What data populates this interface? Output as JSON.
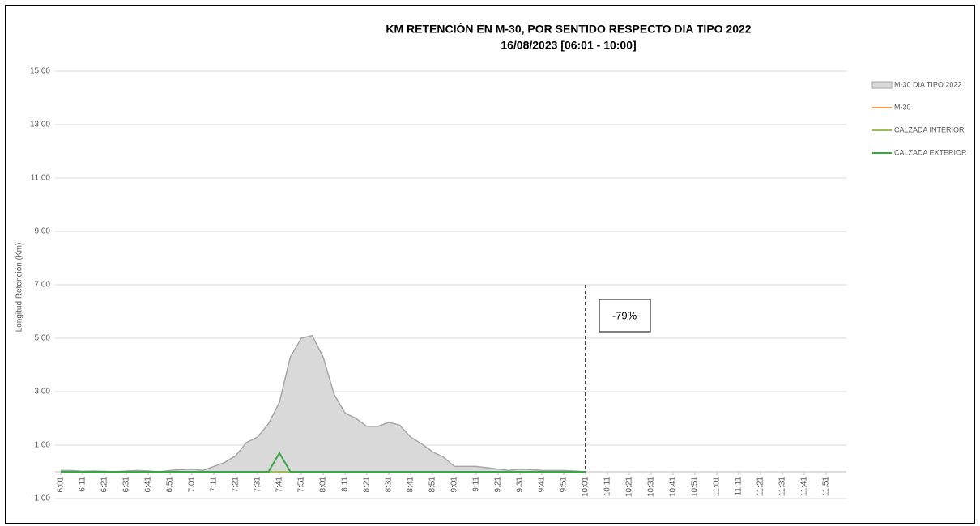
{
  "chart_data": {
    "type": "area",
    "title": "KM RETENCIÓN EN M-30, POR SENTIDO RESPECTO DIA TIPO 2022",
    "subtitle": "16/08/2023    [06:01 - 10:00]",
    "y_label": "Longitud Retención (Km)",
    "categories": [
      "6:01",
      null,
      "6:11",
      null,
      "6:21",
      null,
      "6:31",
      null,
      "6:41",
      null,
      "6:51",
      null,
      "7:01",
      null,
      "7:11",
      null,
      "7:21",
      null,
      "7:31",
      null,
      "7:41",
      null,
      "7:51",
      null,
      "8:01",
      null,
      "8:11",
      null,
      "8:21",
      null,
      "8:31",
      null,
      "8:41",
      null,
      "8:51",
      null,
      "9:01",
      null,
      "9:11",
      null,
      "9:21",
      null,
      "9:31",
      null,
      "9:41",
      null,
      "9:51",
      null,
      "10:01",
      null,
      "10:11",
      null,
      "10:21",
      null,
      "10:31",
      null,
      "10:41",
      null,
      "10:51",
      null,
      "11:01",
      null,
      "11:11",
      null,
      "11:21",
      null,
      "11:31",
      null,
      "11:41",
      null,
      "11:51",
      null
    ],
    "series": [
      {
        "name": "M-30 DIA TIPO 2022",
        "type": "area",
        "color": "#d9d9d9",
        "stroke": "#a6a6a6",
        "values": [
          0.05,
          0.05,
          0.02,
          0.03,
          0.02,
          0,
          0.03,
          0.05,
          0.03,
          0,
          0.05,
          0.08,
          0.1,
          0.05,
          0.2,
          0.35,
          0.6,
          1.1,
          1.3,
          1.8,
          2.6,
          4.3,
          5.0,
          5.1,
          4.3,
          2.9,
          2.2,
          2.0,
          1.7,
          1.7,
          1.85,
          1.75,
          1.3,
          1.05,
          0.75,
          0.55,
          0.2,
          0.2,
          0.2,
          0.15,
          0.1,
          0.05,
          0.1,
          0.08,
          0.05,
          0.05,
          0.05,
          0.03,
          0,
          null,
          null,
          null,
          null,
          null,
          null,
          null,
          null,
          null,
          null,
          null,
          null,
          null,
          null,
          null,
          null,
          null,
          null,
          null,
          null,
          null,
          null,
          null
        ]
      },
      {
        "name": "M-30",
        "type": "line",
        "color": "#f79646",
        "values": [
          0,
          0,
          0,
          0,
          0,
          0,
          0,
          0,
          0,
          0,
          0,
          0,
          0,
          0,
          0,
          0,
          0,
          0,
          0,
          0,
          0,
          0,
          0,
          0,
          0,
          0,
          0,
          0,
          0,
          0,
          0,
          0,
          0,
          0,
          0,
          0,
          0,
          0,
          0,
          0,
          0,
          0,
          0,
          0,
          0,
          0,
          0,
          0,
          0,
          null,
          null,
          null,
          null,
          null,
          null,
          null,
          null,
          null,
          null,
          null,
          null,
          null,
          null,
          null,
          null,
          null,
          null,
          null,
          null,
          null,
          null,
          null
        ]
      },
      {
        "name": "CALZADA INTERIOR",
        "type": "line",
        "color": "#9bbb59",
        "values": [
          0,
          0,
          0,
          0,
          0,
          0,
          0,
          0,
          0,
          0,
          0,
          0,
          0,
          0,
          0,
          0,
          0,
          0,
          0,
          0,
          0,
          0,
          0,
          0,
          0,
          0,
          0,
          0,
          0,
          0,
          0,
          0,
          0,
          0,
          0,
          0,
          0,
          0,
          0,
          0,
          0,
          0,
          0,
          0,
          0,
          0,
          0,
          0,
          0,
          null,
          null,
          null,
          null,
          null,
          null,
          null,
          null,
          null,
          null,
          null,
          null,
          null,
          null,
          null,
          null,
          null,
          null,
          null,
          null,
          null,
          null,
          null
        ]
      },
      {
        "name": "CALZADA EXTERIOR",
        "type": "line",
        "color": "#3aa648",
        "values": [
          0,
          0,
          0,
          0,
          0,
          0,
          0,
          0,
          0,
          0,
          0,
          0,
          0,
          0,
          0,
          0,
          0,
          0,
          0,
          0,
          0.7,
          0,
          0,
          0,
          0,
          0,
          0,
          0,
          0,
          0,
          0,
          0,
          0,
          0,
          0,
          0,
          0,
          0,
          0,
          0,
          0,
          0,
          0,
          0,
          0,
          0,
          0,
          0,
          0,
          null,
          null,
          null,
          null,
          null,
          null,
          null,
          null,
          null,
          null,
          null,
          null,
          null,
          null,
          null,
          null,
          null,
          null,
          null,
          null,
          null,
          null,
          null
        ]
      }
    ],
    "ylim": [
      -1,
      15
    ],
    "yticks": [
      {
        "value": -1,
        "label": "-1,00"
      },
      {
        "value": 1,
        "label": "1,00"
      },
      {
        "value": 3,
        "label": "3,00"
      },
      {
        "value": 5,
        "label": "5,00"
      },
      {
        "value": 7,
        "label": "7,00"
      },
      {
        "value": 9,
        "label": "9,00"
      },
      {
        "value": 11,
        "label": "11,00"
      },
      {
        "value": 13,
        "label": "13,00"
      },
      {
        "value": 15,
        "label": "15,00"
      }
    ],
    "grid": true,
    "legend": "right",
    "annotation": {
      "label": "-79%",
      "at": "10:01",
      "top": 7
    }
  }
}
